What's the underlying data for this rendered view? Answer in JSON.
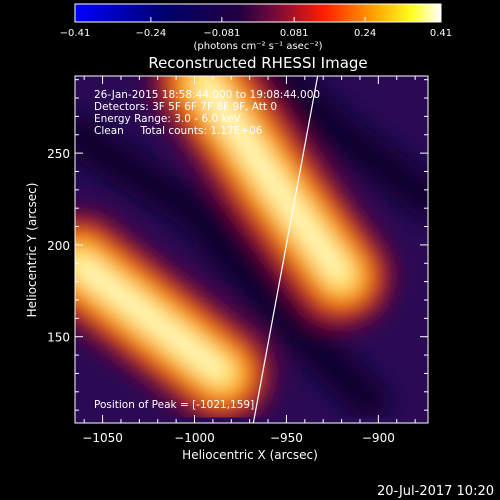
{
  "chart_data": {
    "type": "heatmap",
    "title": "Reconstructed RHESSI Image",
    "xlabel": "Heliocentric X (arcsec)",
    "ylabel": "Heliocentric Y (arcsec)",
    "xlim": [
      -1065,
      -873
    ],
    "ylim": [
      103,
      292
    ],
    "x_ticks": [
      -1050,
      -1000,
      -950,
      -900
    ],
    "x_tick_labels": [
      "−1050",
      "−1000",
      "−950",
      "−900"
    ],
    "y_ticks": [
      150,
      200,
      250
    ],
    "y_tick_labels": [
      "150",
      "200",
      "250"
    ],
    "colorbar": {
      "range": [
        -0.41,
        0.41
      ],
      "ticks": [
        -0.41,
        -0.24,
        -0.081,
        0.081,
        0.24,
        0.41
      ],
      "tick_labels": [
        "−0.41",
        "−0.24",
        "−0.081",
        "0.081",
        "0.24",
        "0.41"
      ],
      "units_label": "(photons cm⁻² s⁻¹ asec⁻²)"
    },
    "annotations": [
      "26-Jan-2015 18:58:44.000 to 19:08:44.000",
      "Detectors: 3F 5F 6F 7F 8F 9F, Att 0",
      "Energy Range: 3.0 - 6.0 keV",
      "Clean     Total counts: 1.17E+06"
    ],
    "peak_label": "Position of Peak = [-1021,159]",
    "peak": [
      -1021,
      159
    ],
    "limb_line": {
      "x": [
        -968,
        -933
      ],
      "y": [
        103,
        292
      ]
    },
    "bright_ridges": [
      {
        "name": "",
        "x": [
          -1063,
          -1024,
          -985
        ],
        "y": [
          190,
          160,
          130
        ]
      },
      {
        "name": "",
        "x": [
          -995,
          -958,
          -920
        ],
        "y": [
          289,
          235,
          183
        ]
      }
    ],
    "colors": {
      "background": "#000000",
      "text": "#ffffff",
      "limb": "#ffffff"
    }
  },
  "footer": {
    "timestamp": "20-Jul-2017 10:20"
  }
}
